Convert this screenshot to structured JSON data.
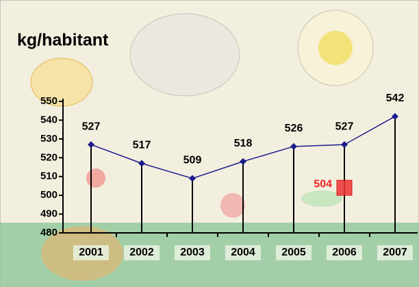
{
  "chart_data": {
    "type": "line",
    "title": "kg/habitant",
    "categories": [
      "2001",
      "2002",
      "2003",
      "2004",
      "2005",
      "2006",
      "2007"
    ],
    "series": [
      {
        "color": "#1c1c8c",
        "marker": "diamond",
        "label_color": "#000000",
        "drop_lines": true,
        "values": [
          527,
          517,
          509,
          518,
          526,
          527,
          542
        ]
      },
      {
        "color": "#ee3333",
        "marker": "square",
        "label_color": "#ee2222",
        "drop_lines": false,
        "values": [
          null,
          null,
          null,
          null,
          null,
          504,
          null
        ]
      }
    ],
    "ylim": [
      480,
      550
    ],
    "yticks": [
      480,
      490,
      500,
      510,
      520,
      530,
      540,
      550
    ],
    "grid": false
  }
}
